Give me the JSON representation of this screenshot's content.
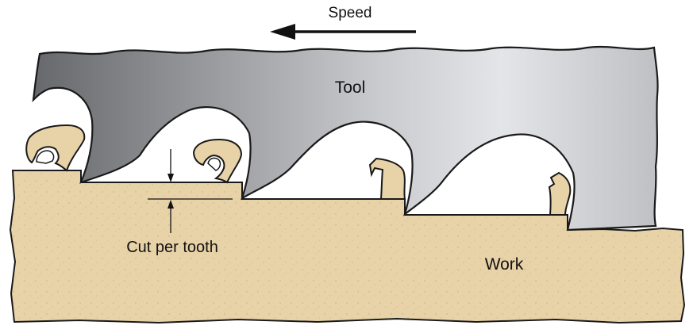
{
  "labels": {
    "speed": "Speed",
    "tool": "Tool",
    "work": "Work",
    "cut_per_tooth": "Cut per tooth"
  },
  "colors": {
    "tool_dark": "#6b6c70",
    "tool_light": "#e2e3e6",
    "work_fill": "#e8d2a8",
    "outline": "#1a1a1a"
  }
}
